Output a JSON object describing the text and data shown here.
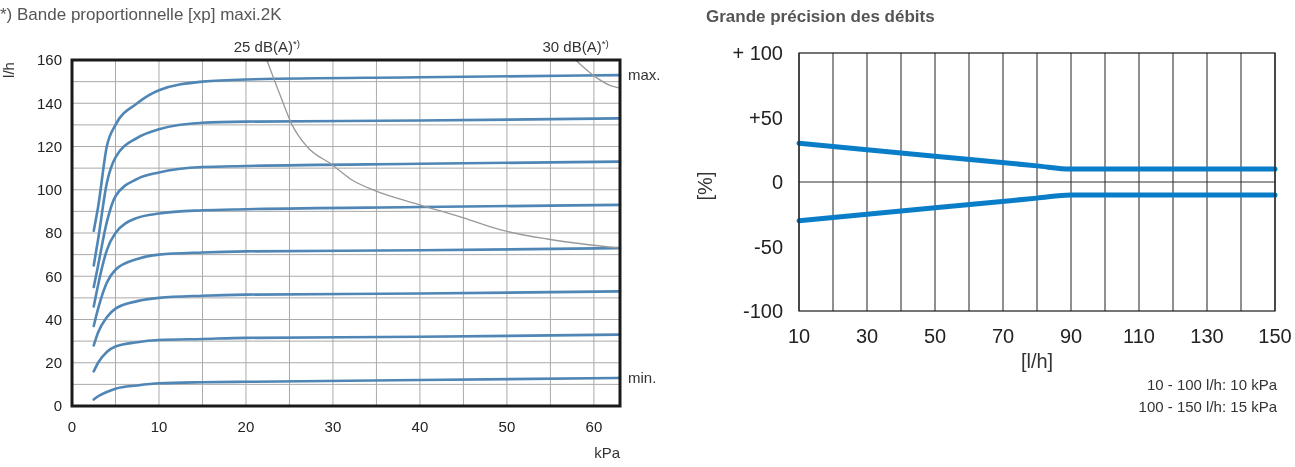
{
  "chart_data": [
    {
      "type": "line",
      "title": "*) Bande proportionnelle [xp] maxi.2K",
      "xlabel": "kPa",
      "ylabel": "l/h",
      "xlim": [
        0,
        63
      ],
      "ylim": [
        0,
        160
      ],
      "xticks": [
        0,
        {
          "value": 5,
          "label": null
        },
        10,
        {
          "value": 15,
          "label": null
        },
        20,
        {
          "value": 25,
          "label": null
        },
        30,
        {
          "value": 35,
          "label": null
        },
        40,
        {
          "value": 45,
          "label": null
        },
        50,
        {
          "value": 55,
          "label": null
        },
        60
      ],
      "yticks": [
        0,
        {
          "value": 10,
          "label": null
        },
        20,
        {
          "value": 30,
          "label": null
        },
        40,
        {
          "value": 50,
          "label": null
        },
        60,
        {
          "value": 70,
          "label": null
        },
        80,
        {
          "value": 90,
          "label": null
        },
        100,
        {
          "value": 110,
          "label": null
        },
        120,
        {
          "value": 130,
          "label": null
        },
        140,
        {
          "value": 150,
          "label": null
        },
        160
      ],
      "grid": true,
      "series": [
        {
          "name": "max.",
          "color": "#4f86b5",
          "x": [
            2.5,
            3,
            4,
            5,
            7.5,
            10,
            15,
            20,
            40,
            63
          ],
          "values": [
            81,
            92,
            120,
            130,
            140,
            146,
            150,
            151,
            152,
            153
          ]
        },
        {
          "color": "#4f86b5",
          "x": [
            2.5,
            3,
            4,
            5,
            7.5,
            10,
            15,
            20,
            40,
            63
          ],
          "values": [
            65,
            77,
            103,
            115,
            124,
            128,
            131,
            131.5,
            132,
            133
          ]
        },
        {
          "color": "#4f86b5",
          "x": [
            2.5,
            3,
            4,
            5,
            7.5,
            10,
            15,
            20,
            40,
            63
          ],
          "values": [
            55,
            65,
            85,
            97,
            105,
            108,
            110.5,
            111,
            112,
            113
          ]
        },
        {
          "color": "#4f86b5",
          "x": [
            2.5,
            3,
            4,
            5,
            7.5,
            10,
            15,
            20,
            40,
            63
          ],
          "values": [
            46,
            56,
            72,
            80,
            87,
            89,
            90.5,
            91,
            92,
            93
          ]
        },
        {
          "color": "#4f86b5",
          "x": [
            2.5,
            3,
            4,
            5,
            7.5,
            10,
            15,
            20,
            40,
            63
          ],
          "values": [
            37,
            45,
            57,
            63,
            68,
            70,
            71,
            71.5,
            72,
            73
          ]
        },
        {
          "color": "#4f86b5",
          "x": [
            2.5,
            3,
            4,
            5,
            7.5,
            10,
            15,
            20,
            40,
            63
          ],
          "values": [
            28,
            34,
            41,
            45,
            48.5,
            50,
            51,
            51.5,
            52,
            53
          ]
        },
        {
          "color": "#4f86b5",
          "x": [
            2.5,
            3,
            4,
            5,
            7.5,
            10,
            15,
            20,
            40,
            63
          ],
          "values": [
            16,
            20,
            25,
            27.5,
            29.5,
            30.5,
            31,
            31.5,
            32,
            33
          ]
        },
        {
          "name": "min.",
          "color": "#4f86b5",
          "x": [
            2.5,
            3,
            4,
            5,
            7.5,
            10,
            15,
            20,
            40,
            63
          ],
          "values": [
            3,
            4.5,
            6.5,
            8,
            9.5,
            10.5,
            11,
            11.2,
            12,
            13
          ]
        },
        {
          "name": "25 dB(A)$^{*)}$",
          "color": "#999999",
          "x": [
            22.4,
            24,
            25.3,
            27,
            29.9,
            32,
            34.9,
            39.7,
            45,
            49.3,
            55,
            63
          ],
          "values": [
            160,
            143,
            130,
            120,
            111.6,
            105,
            99.5,
            93.4,
            87,
            81.4,
            77,
            73
          ]
        },
        {
          "name": "30 dB(A)$^{*)}$",
          "color": "#999999",
          "x": [
            57.9,
            59.9,
            62,
            63
          ],
          "values": [
            160,
            153,
            148,
            147
          ]
        }
      ]
    },
    {
      "type": "line",
      "title": "Grande précision des débits",
      "xlabel": "[l/h]",
      "ylabel": "[%]",
      "xlim": [
        10,
        150
      ],
      "ylim": [
        -100,
        100
      ],
      "xticks": [
        10,
        {
          "value": 20,
          "label": null
        },
        30,
        {
          "value": 40,
          "label": null
        },
        50,
        {
          "value": 60,
          "label": null
        },
        70,
        {
          "value": 80,
          "label": null
        },
        90,
        {
          "value": 100,
          "label": null
        },
        110,
        {
          "value": 120,
          "label": null
        },
        130,
        {
          "value": 140,
          "label": null
        },
        150
      ],
      "yticks": [
        {
          "value": 100,
          "label": "+ 100"
        },
        {
          "value": 50,
          "label": "+50"
        },
        0,
        -50,
        -100
      ],
      "grid": "x",
      "ref_lines": [
        {
          "axis": "y",
          "value": 0,
          "color": "#333333"
        }
      ],
      "annotations": [
        "10 - 100 l/h: 10 kPa",
        "100 - 150 l/h: 15 kPa"
      ],
      "series": [
        {
          "color": "#0a7dc8",
          "x": [
            10,
            50,
            80,
            90,
            120,
            150
          ],
          "values": [
            30,
            20,
            12.5,
            10,
            10,
            10
          ]
        },
        {
          "color": "#0a7dc8",
          "x": [
            10,
            50,
            80,
            90,
            120,
            150
          ],
          "values": [
            -30,
            -20,
            -12.5,
            -10,
            -10,
            -10
          ]
        }
      ]
    }
  ]
}
